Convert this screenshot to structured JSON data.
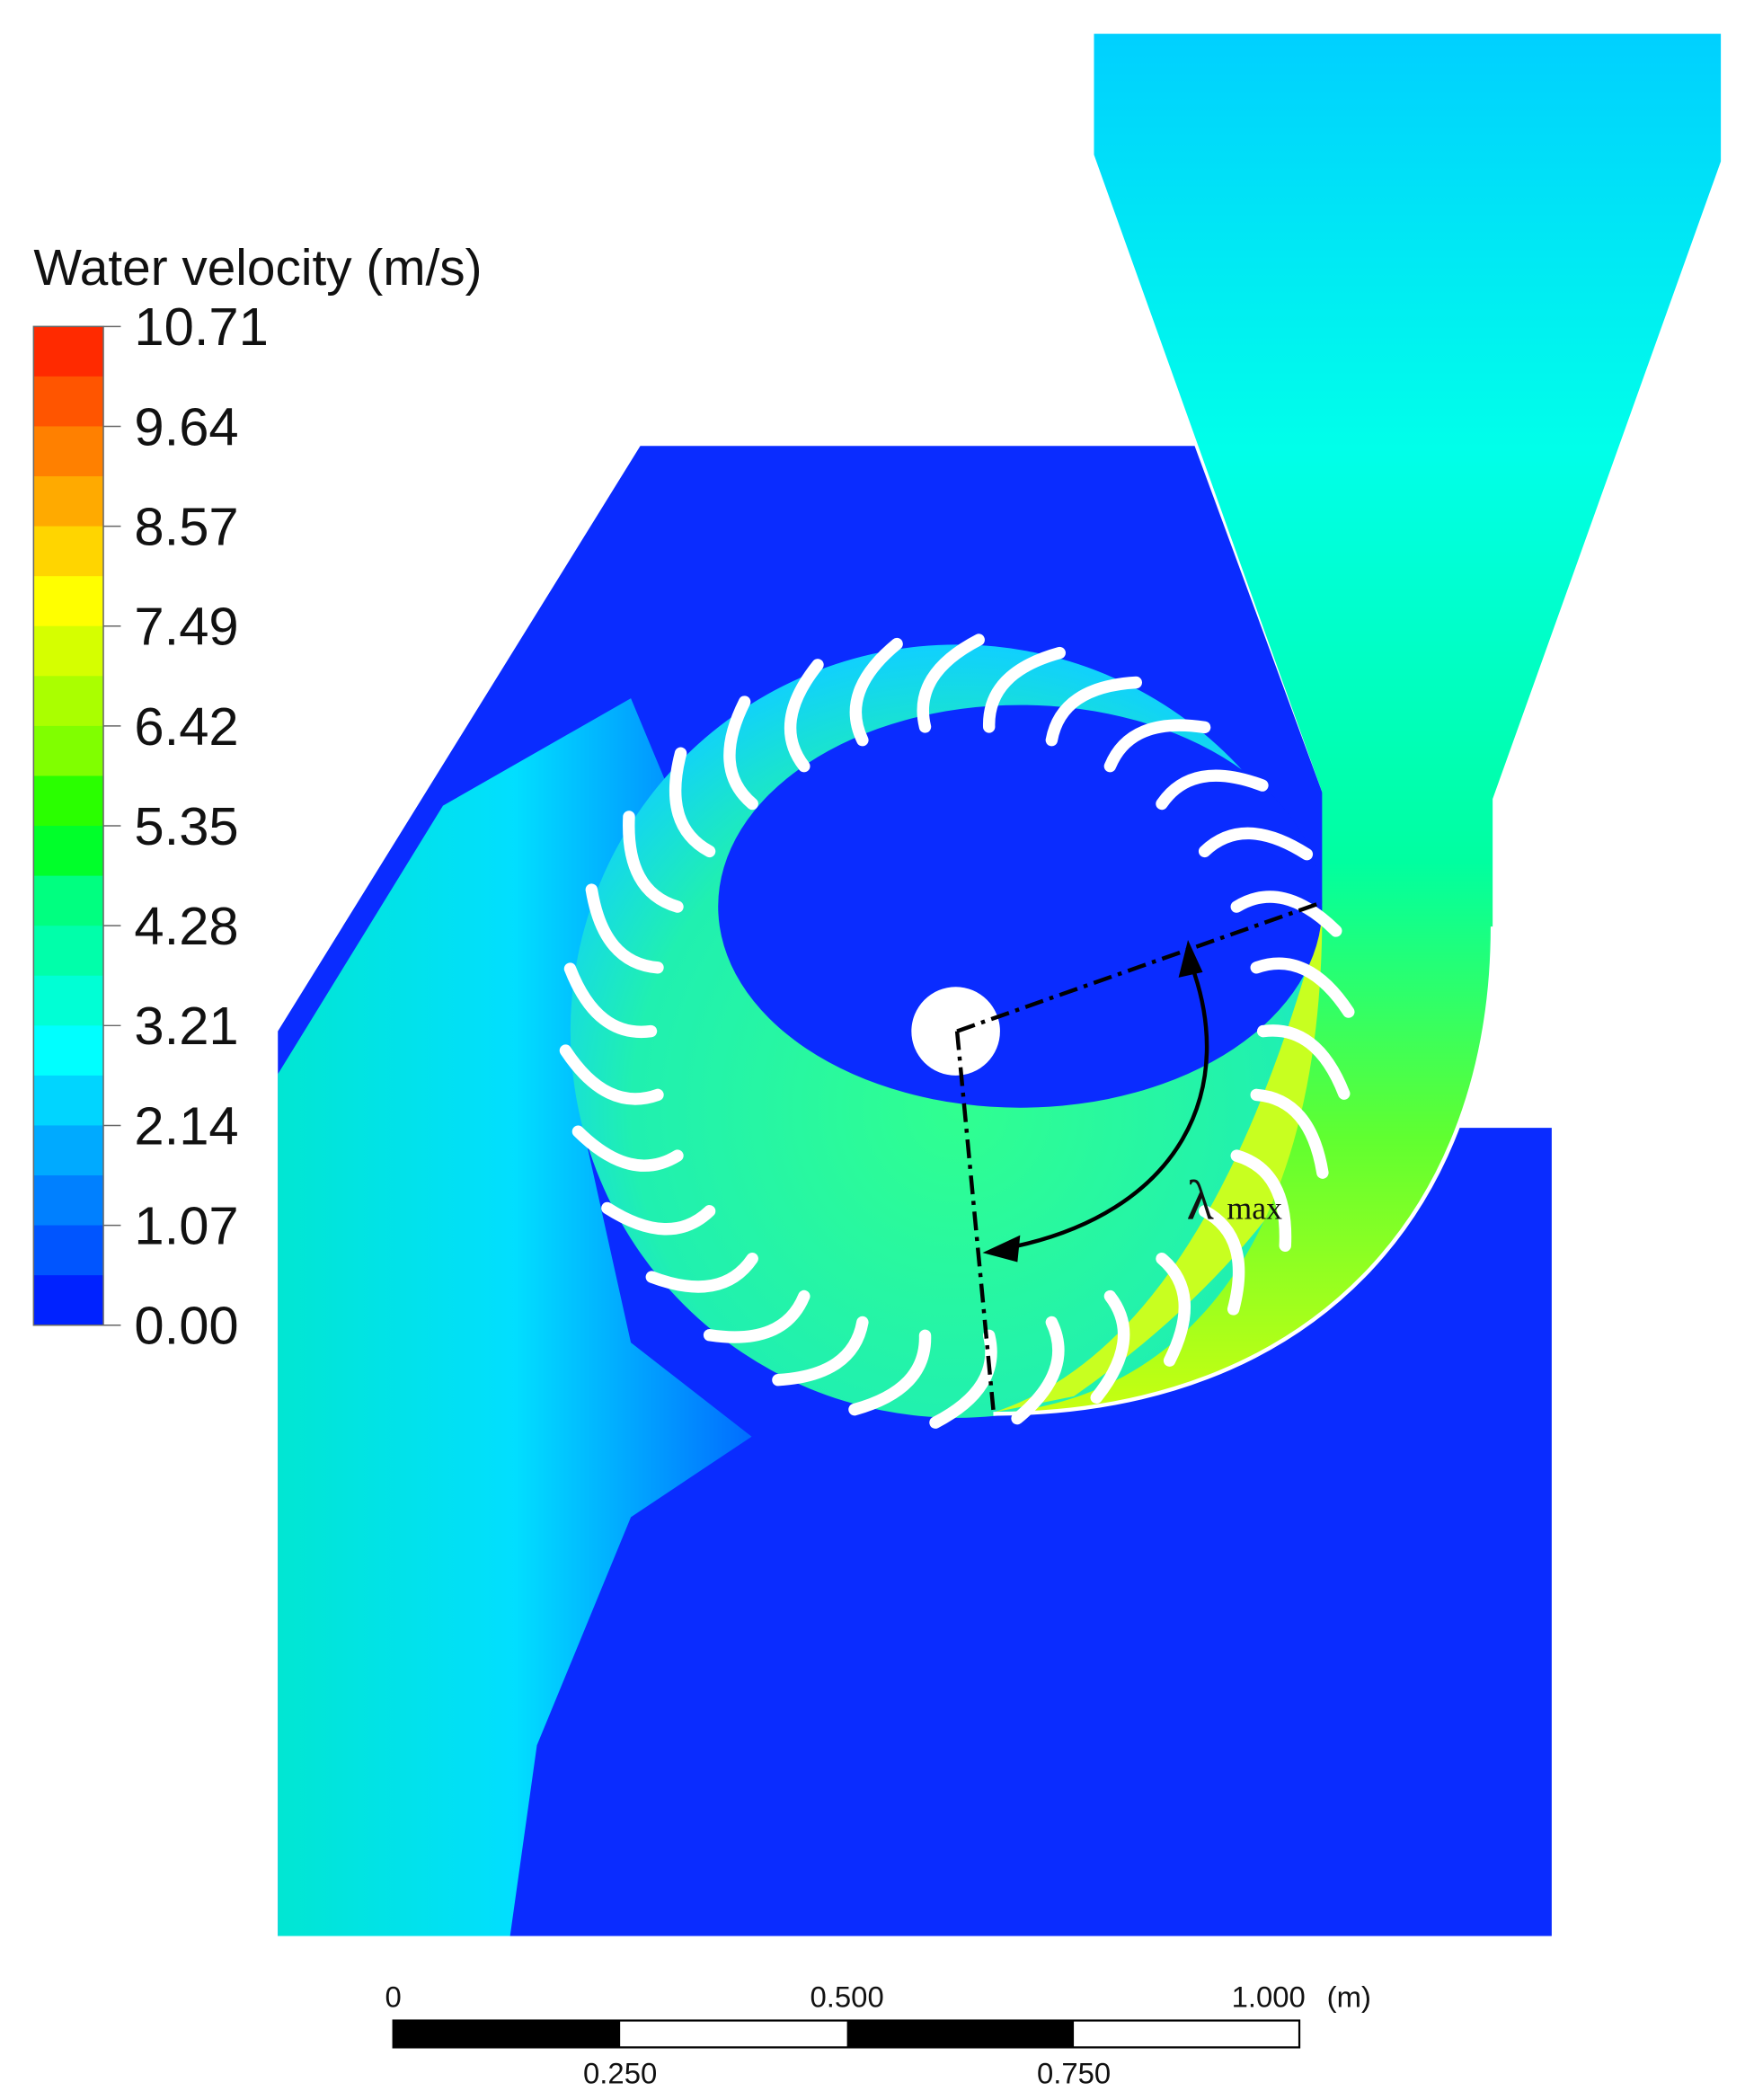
{
  "legend": {
    "title": "Water velocity (m/s)",
    "labels": [
      "10.71",
      "9.64",
      "8.57",
      "7.49",
      "6.42",
      "5.35",
      "4.28",
      "3.21",
      "2.14",
      "1.07",
      "0.00"
    ],
    "colors": [
      "#ff2a00",
      "#ff5500",
      "#ff8000",
      "#ffaa00",
      "#ffd500",
      "#ffff00",
      "#d5ff00",
      "#aaff00",
      "#80ff00",
      "#2aff00",
      "#00ff2a",
      "#00ff80",
      "#00ffaa",
      "#00ffd5",
      "#00ffff",
      "#00d5ff",
      "#00aaff",
      "#0080ff",
      "#0055ff",
      "#0022ff"
    ]
  },
  "annotation": {
    "symbol": "λ",
    "subscript": "max"
  },
  "scale_bar": {
    "top_labels": [
      "0",
      "0.500",
      "1.000"
    ],
    "unit": "(m)",
    "bottom_labels": [
      "0.250",
      "0.750"
    ]
  }
}
